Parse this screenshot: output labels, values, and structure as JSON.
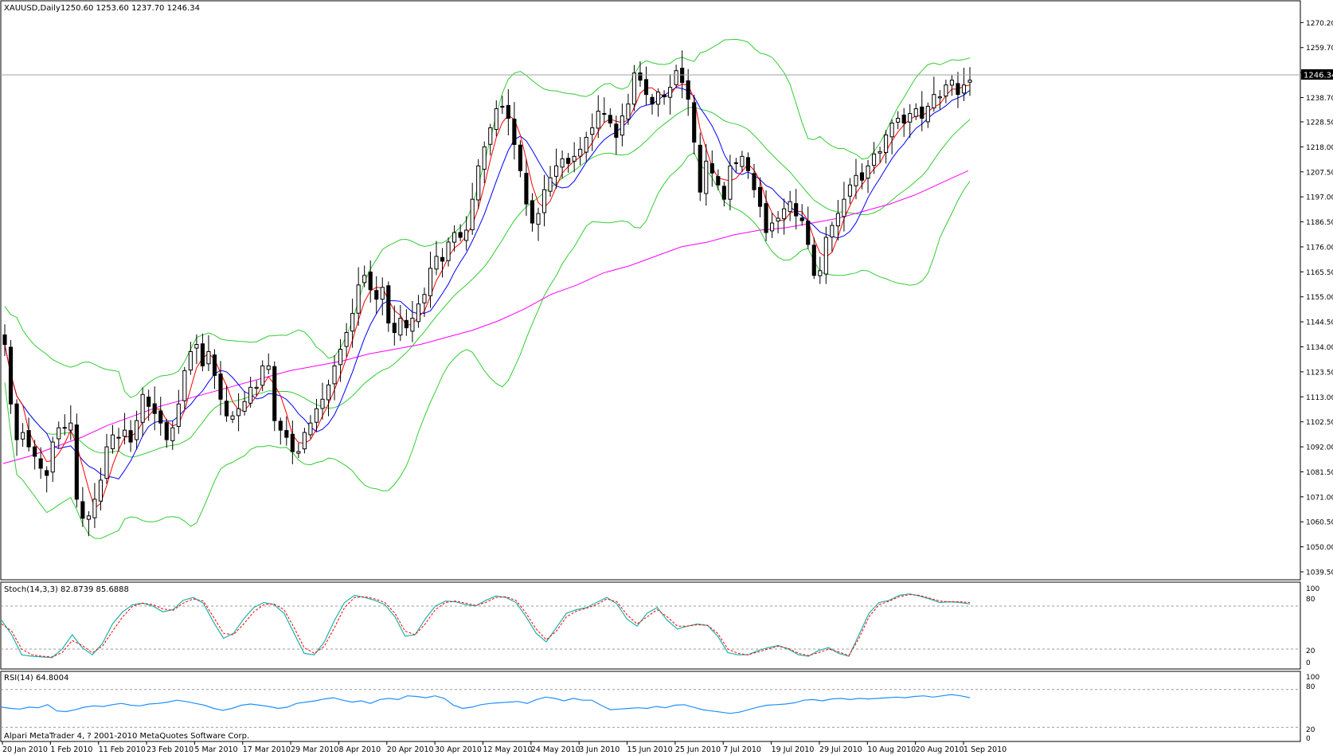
{
  "main_panel": {
    "title_symbol": "XAUUSD,Daily",
    "ohlc_text": "1250.60 1253.60 1237.70 1246.34",
    "current_price_label": "1246.34"
  },
  "stoch_panel": {
    "title": "Stoch(14,3,3) 82.8739 85.6888",
    "levels": [
      "100",
      "80",
      "20",
      "0"
    ]
  },
  "rsi_panel": {
    "title": "RSI(14) 64.8004",
    "levels": [
      "100",
      "80",
      "20",
      "0"
    ]
  },
  "copyright": "Alpari MetaTrader 4, ? 2001-2010 MetaQuotes Software Corp.",
  "colors": {
    "background": "#ffffff",
    "bollinger": "#32cd32",
    "ma_fast": "#ff0000",
    "ma_slow": "#0000ff",
    "ma_long": "#ff00ff",
    "stoch_main": "#20b2aa",
    "stoch_signal": "#ff0000",
    "rsi": "#1e90ff",
    "candle": "#000000"
  },
  "chart_data": {
    "type": "candlestick",
    "symbol": "XAUUSD",
    "timeframe": "Daily",
    "price_ylim": [
      1039.5,
      1275.0
    ],
    "price_ticks": [
      "1270.20",
      "1259.70",
      "1249.20",
      "1238.70",
      "1228.50",
      "1218.00",
      "1207.50",
      "1197.00",
      "1186.50",
      "1176.00",
      "1165.50",
      "1155.00",
      "1144.50",
      "1134.00",
      "1123.50",
      "1113.00",
      "1102.50",
      "1092.00",
      "1081.50",
      "1071.00",
      "1060.50",
      "1050.00",
      "1039.50"
    ],
    "x_ticks": [
      "20 Jan 2010",
      "1 Feb 2010",
      "11 Feb 2010",
      "23 Feb 2010",
      "5 Mar 2010",
      "17 Mar 2010",
      "29 Mar 2010",
      "8 Apr 2010",
      "20 Apr 2010",
      "30 Apr 2010",
      "12 May 2010",
      "24 May 2010",
      "3 Jun 2010",
      "15 Jun 2010",
      "25 Jun 2010",
      "7 Jul 2010",
      "19 Jul 2010",
      "29 Jul 2010",
      "10 Aug 2010",
      "20 Aug 2010",
      "1 Sep 2010"
    ],
    "close_path": [
      1135,
      1110,
      1095,
      1098,
      1092,
      1088,
      1083,
      1080,
      1094,
      1100,
      1100,
      1102,
      1070,
      1062,
      1063,
      1070,
      1078,
      1092,
      1097,
      1096,
      1099,
      1094,
      1103,
      1114,
      1109,
      1106,
      1102,
      1095,
      1100,
      1110,
      1124,
      1132,
      1135,
      1126,
      1132,
      1122,
      1112,
      1105,
      1105,
      1108,
      1111,
      1117,
      1117,
      1126,
      1126,
      1103,
      1099,
      1096,
      1090,
      1090,
      1098,
      1102,
      1108,
      1112,
      1118,
      1126,
      1133,
      1140,
      1148,
      1160,
      1164,
      1158,
      1154,
      1159,
      1144,
      1140,
      1146,
      1142,
      1146,
      1152,
      1156,
      1167,
      1172,
      1170,
      1178,
      1182,
      1180,
      1183,
      1196,
      1210,
      1218,
      1226,
      1234,
      1235,
      1230,
      1219,
      1208,
      1194,
      1186,
      1190,
      1200,
      1205,
      1210,
      1213,
      1211,
      1214,
      1217,
      1222,
      1226,
      1233,
      1232,
      1228,
      1222,
      1231,
      1236,
      1249,
      1246,
      1240,
      1236,
      1241,
      1239,
      1243,
      1250,
      1245,
      1238,
      1220,
      1199,
      1212,
      1207,
      1202,
      1196,
      1210,
      1211,
      1214,
      1208,
      1200,
      1193,
      1182,
      1186,
      1188,
      1192,
      1195,
      1189,
      1187,
      1177,
      1164,
      1166,
      1180,
      1185,
      1190,
      1196,
      1202,
      1206,
      1204,
      1210,
      1215,
      1216,
      1223,
      1228,
      1230,
      1228,
      1232,
      1234,
      1230,
      1235,
      1240,
      1239,
      1244,
      1246,
      1240,
      1244,
      1246
    ],
    "ma_long_path": [
      1085,
      1088,
      1092,
      1096,
      1101,
      1105,
      1109,
      1112,
      1115,
      1118,
      1121,
      1124,
      1126,
      1128,
      1131,
      1133,
      1135,
      1138,
      1141,
      1145,
      1150,
      1156,
      1160,
      1165,
      1168,
      1172,
      1176,
      1178,
      1181,
      1183,
      1184,
      1186,
      1188,
      1191,
      1194,
      1198,
      1203,
      1208
    ],
    "stochastic": {
      "k_range": [
        0,
        100
      ],
      "levels": [
        20,
        80
      ],
      "k_main": [
        60,
        40,
        12,
        10,
        9,
        8,
        20,
        40,
        22,
        12,
        28,
        55,
        72,
        82,
        84,
        80,
        72,
        75,
        88,
        92,
        84,
        58,
        35,
        42,
        62,
        78,
        85,
        82,
        70,
        42,
        14,
        12,
        30,
        60,
        85,
        95,
        92,
        88,
        82,
        65,
        38,
        40,
        62,
        80,
        87,
        86,
        82,
        80,
        88,
        94,
        92,
        85,
        65,
        42,
        30,
        50,
        70,
        75,
        78,
        85,
        92,
        83,
        62,
        52,
        70,
        78,
        60,
        48,
        52,
        55,
        53,
        38,
        15,
        12,
        12,
        18,
        22,
        25,
        20,
        12,
        10,
        18,
        22,
        14,
        10,
        40,
        70,
        85,
        88,
        95,
        97,
        94,
        90,
        85,
        86,
        85,
        83
      ],
      "d_signal": [
        55,
        45,
        20,
        12,
        10,
        9,
        15,
        32,
        25,
        15,
        24,
        45,
        65,
        80,
        84,
        82,
        76,
        74,
        84,
        90,
        87,
        65,
        42,
        40,
        55,
        72,
        82,
        83,
        75,
        50,
        22,
        14,
        24,
        50,
        78,
        92,
        93,
        90,
        85,
        70,
        45,
        40,
        55,
        75,
        85,
        87,
        84,
        81,
        85,
        92,
        93,
        88,
        70,
        48,
        33,
        45,
        65,
        73,
        77,
        82,
        90,
        86,
        68,
        55,
        65,
        75,
        65,
        52,
        52,
        54,
        53,
        42,
        20,
        14,
        12,
        16,
        20,
        24,
        21,
        14,
        11,
        15,
        20,
        16,
        11,
        35,
        65,
        82,
        87,
        93,
        96,
        95,
        91,
        87,
        86,
        86,
        85
      ]
    },
    "rsi": {
      "range": [
        0,
        100
      ],
      "levels": [
        20,
        80
      ],
      "values": [
        52,
        50,
        49,
        52,
        51,
        56,
        46,
        45,
        48,
        52,
        54,
        53,
        56,
        58,
        55,
        54,
        57,
        58,
        60,
        63,
        61,
        58,
        55,
        50,
        47,
        50,
        55,
        57,
        55,
        53,
        50,
        52,
        58,
        60,
        62,
        65,
        67,
        63,
        60,
        62,
        58,
        64,
        66,
        64,
        70,
        69,
        67,
        70,
        66,
        55,
        50,
        52,
        56,
        58,
        59,
        60,
        61,
        58,
        64,
        68,
        66,
        62,
        66,
        63,
        63,
        55,
        48,
        49,
        50,
        51,
        50,
        53,
        51,
        55,
        56,
        52,
        48,
        46,
        44,
        42,
        44,
        48,
        52,
        55,
        56,
        57,
        59,
        63,
        64,
        62,
        65,
        66,
        64,
        66,
        65,
        66,
        67,
        68,
        67,
        69,
        70,
        68,
        70,
        72,
        70,
        67
      ]
    },
    "title": "XAUUSD,Daily"
  }
}
